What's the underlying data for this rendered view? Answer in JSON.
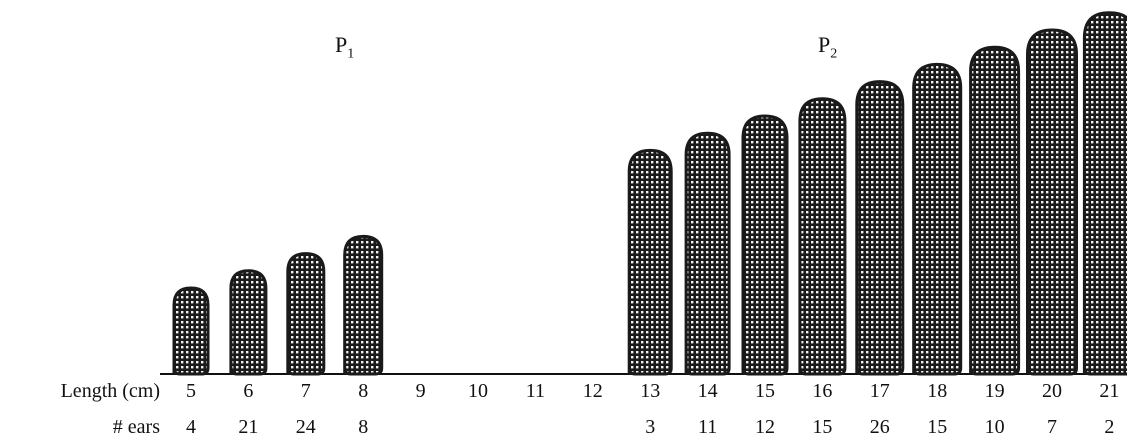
{
  "groups": [
    {
      "name": "P",
      "sub": "1"
    },
    {
      "name": "P",
      "sub": "2"
    }
  ],
  "rows": {
    "length_label": "Length (cm)",
    "ears_label": "# ears"
  },
  "lengths": [
    "5",
    "6",
    "7",
    "8",
    "9",
    "10",
    "11",
    "12",
    "13",
    "14",
    "15",
    "16",
    "17",
    "18",
    "19",
    "20",
    "21"
  ],
  "ears": [
    "4",
    "21",
    "24",
    "8",
    "",
    "",
    "",
    "",
    "3",
    "11",
    "12",
    "15",
    "26",
    "15",
    "10",
    "7",
    "2"
  ],
  "chart_data": {
    "type": "bar",
    "xlabel": "Length (cm)",
    "ylabel": "",
    "categories": [
      "5",
      "6",
      "7",
      "8",
      "9",
      "10",
      "11",
      "12",
      "13",
      "14",
      "15",
      "16",
      "17",
      "18",
      "19",
      "20",
      "21"
    ],
    "series": [
      {
        "name": "P1",
        "values": [
          4,
          21,
          24,
          8,
          null,
          null,
          null,
          null,
          null,
          null,
          null,
          null,
          null,
          null,
          null,
          null,
          null
        ]
      },
      {
        "name": "P2",
        "values": [
          null,
          null,
          null,
          null,
          null,
          null,
          null,
          null,
          3,
          11,
          12,
          15,
          26,
          15,
          10,
          7,
          2
        ]
      }
    ]
  },
  "colors": {
    "ear_fill": "#1a1a1a",
    "ear_grid": "#ffffff",
    "text": "#111111"
  }
}
